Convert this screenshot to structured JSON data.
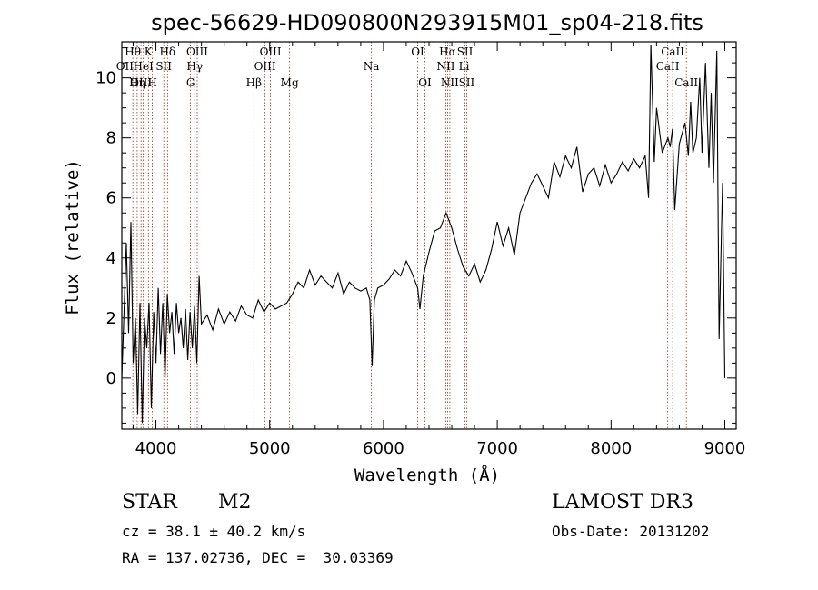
{
  "chart_data": {
    "type": "line",
    "title": "spec-56629-HD090800N293915M01_sp04-218.fits",
    "xlabel": "Wavelength (Å)",
    "ylabel": "Flux (relative)",
    "xlim": [
      3700,
      9100
    ],
    "ylim": [
      -1.7,
      11.2
    ],
    "xticks": [
      4000,
      5000,
      6000,
      7000,
      8000,
      9000
    ],
    "yticks": [
      0,
      2,
      4,
      6,
      8,
      10
    ],
    "xtick_labels": [
      "4000",
      "5000",
      "6000",
      "7000",
      "8000",
      "9000"
    ],
    "ytick_labels": [
      "0",
      "2",
      "4",
      "6",
      "8",
      "10"
    ],
    "line_color": "#000000",
    "marker_color": "#a0301e",
    "spectral_lines": [
      {
        "label": "Hθ",
        "wavelength": 3797,
        "row": 0
      },
      {
        "label": "K",
        "wavelength": 3934,
        "row": 0
      },
      {
        "label": "Hδ",
        "wavelength": 4102,
        "row": 0
      },
      {
        "label": "OIII",
        "wavelength": 4363,
        "row": 0
      },
      {
        "label": "OIII",
        "wavelength": 5007,
        "row": 0
      },
      {
        "label": "OI",
        "wavelength": 6300,
        "row": 0
      },
      {
        "label": "Hα",
        "wavelength": 6563,
        "row": 0
      },
      {
        "label": "SII",
        "wavelength": 6716,
        "row": 0
      },
      {
        "label": "CaII",
        "wavelength": 8542,
        "row": 0
      },
      {
        "label": "OII",
        "wavelength": 3727,
        "row": 1
      },
      {
        "label": "HeI",
        "wavelength": 3889,
        "row": 1
      },
      {
        "label": "SII",
        "wavelength": 4069,
        "row": 1
      },
      {
        "label": "Hγ",
        "wavelength": 4341,
        "row": 1
      },
      {
        "label": "OIII",
        "wavelength": 4959,
        "row": 1
      },
      {
        "label": "Na",
        "wavelength": 5893,
        "row": 1
      },
      {
        "label": "NII",
        "wavelength": 6548,
        "row": 1
      },
      {
        "label": "Li",
        "wavelength": 6708,
        "row": 1
      },
      {
        "label": "CaII",
        "wavelength": 8498,
        "row": 1
      },
      {
        "label": "OIII",
        "wavelength": 3869,
        "row": 2
      },
      {
        "label": "Hη",
        "wavelength": 3835,
        "row": 2
      },
      {
        "label": "H",
        "wavelength": 3968,
        "row": 2
      },
      {
        "label": "G",
        "wavelength": 4304,
        "row": 2
      },
      {
        "label": "Hβ",
        "wavelength": 4861,
        "row": 2
      },
      {
        "label": "Mg",
        "wavelength": 5175,
        "row": 2
      },
      {
        "label": "OI",
        "wavelength": 6364,
        "row": 2
      },
      {
        "label": "NII",
        "wavelength": 6583,
        "row": 2
      },
      {
        "label": "SII",
        "wavelength": 6731,
        "row": 2
      },
      {
        "label": "CaII",
        "wavelength": 8662,
        "row": 2
      }
    ],
    "series": [
      {
        "name": "spectrum",
        "x": [
          3700,
          3740,
          3760,
          3780,
          3800,
          3820,
          3840,
          3860,
          3880,
          3900,
          3920,
          3940,
          3960,
          3980,
          4000,
          4020,
          4040,
          4060,
          4080,
          4100,
          4120,
          4140,
          4160,
          4180,
          4200,
          4220,
          4240,
          4260,
          4280,
          4300,
          4320,
          4340,
          4360,
          4380,
          4400,
          4450,
          4500,
          4550,
          4600,
          4650,
          4700,
          4750,
          4800,
          4850,
          4900,
          4950,
          5000,
          5050,
          5100,
          5150,
          5200,
          5250,
          5300,
          5350,
          5400,
          5450,
          5500,
          5550,
          5600,
          5650,
          5700,
          5750,
          5800,
          5850,
          5880,
          5900,
          5920,
          5950,
          6000,
          6050,
          6100,
          6150,
          6200,
          6250,
          6300,
          6320,
          6350,
          6400,
          6450,
          6500,
          6550,
          6600,
          6650,
          6700,
          6750,
          6800,
          6850,
          6900,
          6950,
          7000,
          7050,
          7100,
          7150,
          7200,
          7250,
          7300,
          7350,
          7400,
          7450,
          7500,
          7550,
          7600,
          7650,
          7700,
          7750,
          7800,
          7850,
          7900,
          7950,
          8000,
          8050,
          8100,
          8150,
          8200,
          8250,
          8300,
          8330,
          8350,
          8380,
          8400,
          8450,
          8500,
          8520,
          8540,
          8560,
          8600,
          8650,
          8680,
          8700,
          8720,
          8750,
          8780,
          8800,
          8830,
          8860,
          8880,
          8900,
          8930,
          8950,
          8980,
          9000
        ],
        "y": [
          0.0,
          4.5,
          1.5,
          5.2,
          0.5,
          2.0,
          -1.2,
          2.5,
          -1.5,
          2.0,
          1.0,
          2.5,
          -1.0,
          2.2,
          0.5,
          3.0,
          0.8,
          2.5,
          0.0,
          2.8,
          1.5,
          2.2,
          0.8,
          2.5,
          1.5,
          2.0,
          1.0,
          2.3,
          0.6,
          2.2,
          1.0,
          2.4,
          0.5,
          3.4,
          1.8,
          2.1,
          1.6,
          2.3,
          1.8,
          2.2,
          1.9,
          2.4,
          2.1,
          2.0,
          2.6,
          2.2,
          2.5,
          2.3,
          2.4,
          2.5,
          2.8,
          3.2,
          3.0,
          3.6,
          3.1,
          3.4,
          3.2,
          3.0,
          3.5,
          2.8,
          3.2,
          3.0,
          2.9,
          3.0,
          2.6,
          0.4,
          2.6,
          3.0,
          3.1,
          3.3,
          3.6,
          3.4,
          3.9,
          3.5,
          3.0,
          2.3,
          3.4,
          4.2,
          4.9,
          5.0,
          5.5,
          5.0,
          4.3,
          3.7,
          3.4,
          3.8,
          3.2,
          3.6,
          4.3,
          5.2,
          4.4,
          5.0,
          4.1,
          5.5,
          6.0,
          6.5,
          6.8,
          6.4,
          6.0,
          7.2,
          6.7,
          7.4,
          7.0,
          7.7,
          6.2,
          6.8,
          7.0,
          6.4,
          7.1,
          6.5,
          6.8,
          7.2,
          6.9,
          7.3,
          7.0,
          7.4,
          6.0,
          11.1,
          7.2,
          9.0,
          7.5,
          8.0,
          7.7,
          8.3,
          5.6,
          7.8,
          8.5,
          7.4,
          9.2,
          7.5,
          8.0,
          10.0,
          7.5,
          10.5,
          7.0,
          9.5,
          6.5,
          10.9,
          1.3,
          6.5,
          0.0
        ]
      }
    ]
  },
  "info": {
    "object_type": "STAR",
    "subclass": "M2",
    "survey": "LAMOST DR3",
    "redshift": "cz = 38.1 ± 40.2 km/s",
    "obs_date": "Obs-Date: 20131202",
    "coords": "RA = 137.02736, DEC =  30.03369"
  }
}
